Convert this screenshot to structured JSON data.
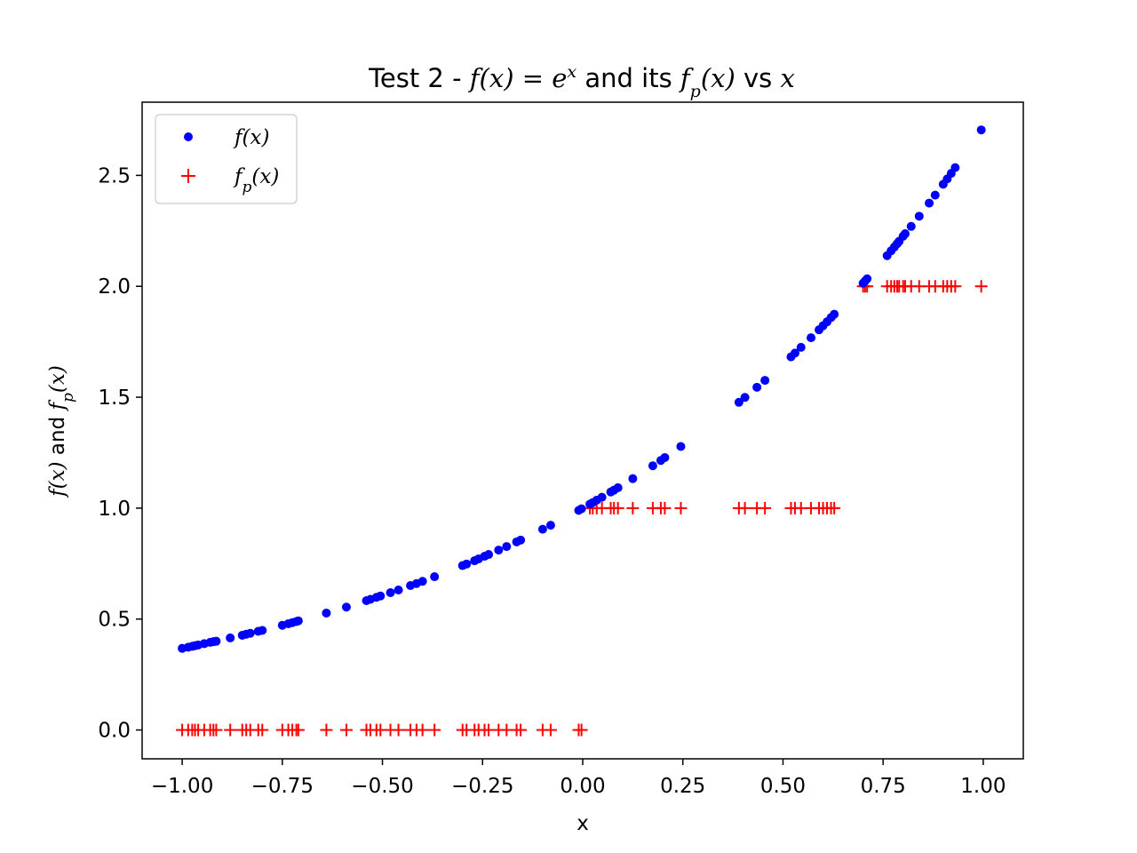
{
  "chart_data": {
    "type": "scatter",
    "title": {
      "prefix": "Test 2 - ",
      "f": "f",
      "ex_lhs": "(x) = e",
      "ex_sup": "x",
      "middle": " and its ",
      "fp_f": "f",
      "fp_sub": "p",
      "fp_arg": "(x)",
      "vs": " vs ",
      "var": "x"
    },
    "xlabel": "x",
    "ylabel": {
      "f_part": "f(x)",
      "and": " and ",
      "fp_f": "f",
      "fp_sub": "p",
      "fp_arg": "(x)"
    },
    "xlim": [
      -1.1,
      1.1
    ],
    "ylim": [
      -0.13,
      2.83
    ],
    "x_ticks": [
      -1.0,
      -0.75,
      -0.5,
      -0.25,
      0.0,
      0.25,
      0.5,
      0.75,
      1.0
    ],
    "x_tick_labels": [
      "−1.00",
      "−0.75",
      "−0.50",
      "−0.25",
      "0.00",
      "0.25",
      "0.50",
      "0.75",
      "1.00"
    ],
    "y_ticks": [
      0.0,
      0.5,
      1.0,
      1.5,
      2.0,
      2.5
    ],
    "y_tick_labels": [
      "0.0",
      "0.5",
      "1.0",
      "1.5",
      "2.0",
      "2.5"
    ],
    "grid": false,
    "legend_position": "top-left",
    "legend": [
      {
        "marker": "dot",
        "f": "f",
        "sub": "",
        "arg": "(x)"
      },
      {
        "marker": "plus",
        "f": "f",
        "sub": "p",
        "arg": "(x)"
      }
    ],
    "x": [
      -1.0,
      -0.985,
      -0.975,
      -0.968,
      -0.96,
      -0.945,
      -0.93,
      -0.922,
      -0.915,
      -0.88,
      -0.85,
      -0.84,
      -0.83,
      -0.81,
      -0.8,
      -0.75,
      -0.735,
      -0.725,
      -0.715,
      -0.71,
      -0.64,
      -0.59,
      -0.54,
      -0.53,
      -0.515,
      -0.505,
      -0.48,
      -0.46,
      -0.43,
      -0.415,
      -0.4,
      -0.37,
      -0.3,
      -0.29,
      -0.27,
      -0.26,
      -0.245,
      -0.235,
      -0.21,
      -0.19,
      -0.165,
      -0.155,
      -0.1,
      -0.08,
      -0.01,
      -0.003,
      0.018,
      0.025,
      0.035,
      0.048,
      0.07,
      0.078,
      0.088,
      0.125,
      0.175,
      0.195,
      0.205,
      0.245,
      0.39,
      0.405,
      0.435,
      0.455,
      0.52,
      0.53,
      0.545,
      0.57,
      0.59,
      0.6,
      0.61,
      0.62,
      0.628,
      0.7,
      0.705,
      0.71,
      0.76,
      0.77,
      0.778,
      0.785,
      0.79,
      0.8,
      0.805,
      0.82,
      0.84,
      0.865,
      0.88,
      0.9,
      0.91,
      0.92,
      0.93,
      0.995
    ],
    "series": [
      {
        "name": "f(x)",
        "marker": "dot",
        "color": "#0000ff",
        "values": [
          0.368,
          0.373,
          0.377,
          0.38,
          0.383,
          0.389,
          0.395,
          0.398,
          0.4,
          0.415,
          0.427,
          0.432,
          0.436,
          0.445,
          0.449,
          0.472,
          0.479,
          0.484,
          0.489,
          0.492,
          0.527,
          0.554,
          0.583,
          0.589,
          0.598,
          0.604,
          0.619,
          0.631,
          0.651,
          0.66,
          0.67,
          0.691,
          0.741,
          0.748,
          0.763,
          0.771,
          0.783,
          0.791,
          0.811,
          0.827,
          0.848,
          0.856,
          0.905,
          0.923,
          0.99,
          0.997,
          1.018,
          1.025,
          1.036,
          1.049,
          1.073,
          1.081,
          1.092,
          1.133,
          1.191,
          1.215,
          1.228,
          1.278,
          1.477,
          1.499,
          1.545,
          1.576,
          1.682,
          1.699,
          1.725,
          1.768,
          1.804,
          1.822,
          1.84,
          1.859,
          1.874,
          2.014,
          2.024,
          2.034,
          2.138,
          2.16,
          2.177,
          2.192,
          2.203,
          2.226,
          2.237,
          2.27,
          2.316,
          2.375,
          2.411,
          2.46,
          2.484,
          2.509,
          2.535,
          2.705
        ]
      },
      {
        "name": "fp(x)",
        "marker": "plus",
        "color": "#ff0000",
        "values": [
          0,
          0,
          0,
          0,
          0,
          0,
          0,
          0,
          0,
          0,
          0,
          0,
          0,
          0,
          0,
          0,
          0,
          0,
          0,
          0,
          0,
          0,
          0,
          0,
          0,
          0,
          0,
          0,
          0,
          0,
          0,
          0,
          0,
          0,
          0,
          0,
          0,
          0,
          0,
          0,
          0,
          0,
          0,
          0,
          0,
          0,
          1,
          1,
          1,
          1,
          1,
          1,
          1,
          1,
          1,
          1,
          1,
          1,
          1,
          1,
          1,
          1,
          1,
          1,
          1,
          1,
          1,
          1,
          1,
          1,
          1,
          2,
          2,
          2,
          2,
          2,
          2,
          2,
          2,
          2,
          2,
          2,
          2,
          2,
          2,
          2,
          2,
          2,
          2,
          2
        ]
      }
    ]
  }
}
